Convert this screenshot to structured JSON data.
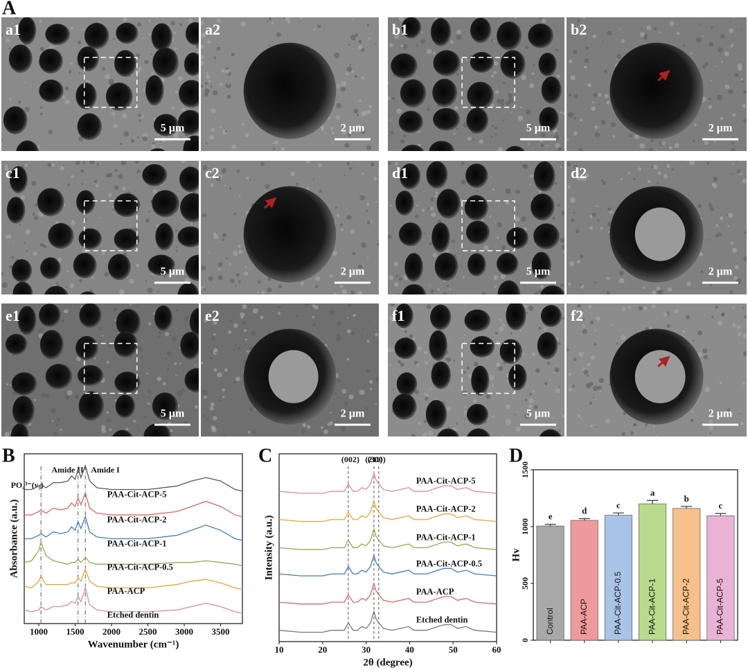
{
  "figure_a": {
    "label": "A",
    "panels": [
      {
        "label": "a1",
        "scale_bar": "5 µm"
      },
      {
        "label": "a2",
        "scale_bar": "2 µm"
      },
      {
        "label": "b1",
        "scale_bar": "5 µm"
      },
      {
        "label": "b2",
        "scale_bar": "2 µm"
      },
      {
        "label": "c1",
        "scale_bar": "5 µm"
      },
      {
        "label": "c2",
        "scale_bar": "2 µm"
      },
      {
        "label": "d1",
        "scale_bar": "5 µm"
      },
      {
        "label": "d2",
        "scale_bar": "2 µm"
      },
      {
        "label": "e1",
        "scale_bar": "5 µm"
      },
      {
        "label": "e2",
        "scale_bar": "2 µm"
      },
      {
        "label": "f1",
        "scale_bar": "5 µm"
      },
      {
        "label": "f2",
        "scale_bar": "2 µm"
      }
    ]
  },
  "chart_data": [
    {
      "type": "line",
      "panel_label": "B",
      "x_label": "Wavenumber (cm⁻¹)",
      "y_label": "Absorbance (a.u.)",
      "x": [
        800,
        900,
        1000,
        1030,
        1100,
        1200,
        1300,
        1400,
        1450,
        1500,
        1540,
        1580,
        1640,
        1700,
        1800,
        2000,
        2500,
        2900,
        3100,
        3300,
        3500,
        3700,
        3800
      ],
      "xlim": [
        800,
        3800
      ],
      "xticks": [
        1000,
        1500,
        2000,
        2500,
        3000,
        3500
      ],
      "ylim": [
        0,
        10
      ],
      "reference_lines": [
        {
          "value": 1030,
          "label": "PO₄³⁻(ν₃)"
        },
        {
          "value": 1540,
          "label": "Amide II"
        },
        {
          "value": 1640,
          "label": "Amide I"
        }
      ],
      "series": [
        {
          "name": "PAA-Cit-ACP-5",
          "color": "#555555",
          "values": [
            7.9,
            7.9,
            8.1,
            8.2,
            8.0,
            8.3,
            8.3,
            8.4,
            8.7,
            8.5,
            9.1,
            8.6,
            9.3,
            8.4,
            8.0,
            7.9,
            7.9,
            8.1,
            8.4,
            8.6,
            8.4,
            7.9,
            7.8
          ]
        },
        {
          "name": "PAA-Cit-ACP-2",
          "color": "#e06464",
          "values": [
            6.4,
            6.4,
            6.6,
            6.7,
            6.5,
            6.8,
            6.7,
            6.8,
            7.1,
            6.9,
            7.4,
            7.0,
            7.7,
            6.8,
            6.5,
            6.4,
            6.4,
            6.6,
            6.9,
            7.2,
            6.9,
            6.4,
            6.3
          ]
        },
        {
          "name": "PAA-Cit-ACP-1",
          "color": "#3d7cc4",
          "values": [
            5.0,
            5.0,
            5.2,
            5.3,
            5.1,
            5.4,
            5.3,
            5.4,
            5.7,
            5.5,
            6.0,
            5.6,
            6.3,
            5.4,
            5.1,
            5.0,
            5.0,
            5.2,
            5.5,
            5.8,
            5.5,
            5.0,
            4.9
          ]
        },
        {
          "name": "PAA-Cit-ACP-0.5",
          "color": "#8fac4a",
          "values": [
            3.6,
            3.7,
            4.3,
            4.8,
            4.0,
            3.7,
            3.6,
            3.5,
            3.6,
            3.6,
            3.8,
            3.6,
            3.9,
            3.6,
            3.5,
            3.5,
            3.5,
            3.6,
            3.6,
            3.7,
            3.6,
            3.5,
            3.4
          ]
        },
        {
          "name": "PAA-ACP",
          "color": "#f0a030",
          "values": [
            2.2,
            2.1,
            2.5,
            2.8,
            2.3,
            2.3,
            2.3,
            2.3,
            2.4,
            2.4,
            2.7,
            2.5,
            3.2,
            2.5,
            2.2,
            2.1,
            2.1,
            2.3,
            2.5,
            2.6,
            2.4,
            2.1,
            2.0
          ]
        },
        {
          "name": "Etched dentin",
          "color": "#d98aa8",
          "values": [
            0.8,
            0.7,
            0.8,
            1.0,
            0.8,
            1.0,
            1.0,
            1.1,
            1.3,
            1.2,
            1.6,
            1.3,
            2.1,
            1.1,
            0.8,
            0.7,
            0.7,
            0.8,
            1.0,
            1.2,
            1.0,
            0.7,
            0.6
          ]
        }
      ]
    },
    {
      "type": "line",
      "panel_label": "C",
      "x_label": "2θ (degree)",
      "y_label": "Intensity (a.u.)",
      "x": [
        10,
        15,
        20,
        22,
        25,
        25.9,
        27,
        28,
        29,
        30,
        31,
        31.8,
        32.3,
        32.9,
        34,
        36,
        39.8,
        41,
        44,
        46.5,
        48,
        49.5,
        51,
        53,
        55,
        60
      ],
      "xlim": [
        10,
        60
      ],
      "xticks": [
        10,
        20,
        30,
        40,
        50,
        60
      ],
      "ylim": [
        0,
        10
      ],
      "reference_lines": [
        {
          "value": 25.9,
          "label": "(002)"
        },
        {
          "value": 31.8,
          "label": "(211)"
        },
        {
          "value": 32.9,
          "label": "(300)"
        }
      ],
      "series": [
        {
          "name": "PAA-Cit-ACP-5",
          "color": "#d98aa8",
          "values": [
            8.0,
            7.9,
            7.9,
            8.0,
            8.0,
            8.4,
            8.0,
            8.0,
            8.2,
            8.1,
            8.4,
            9.0,
            8.6,
            8.4,
            8.1,
            8.0,
            8.2,
            8.0,
            8.0,
            8.2,
            8.3,
            8.3,
            8.1,
            8.2,
            8.0,
            7.9
          ]
        },
        {
          "name": "PAA-Cit-ACP-2",
          "color": "#f0a030",
          "values": [
            6.5,
            6.4,
            6.4,
            6.5,
            6.5,
            6.9,
            6.5,
            6.5,
            6.7,
            6.6,
            6.9,
            7.5,
            7.1,
            6.9,
            6.6,
            6.5,
            6.7,
            6.5,
            6.5,
            6.7,
            6.8,
            6.8,
            6.6,
            6.7,
            6.5,
            6.4
          ]
        },
        {
          "name": "PAA-Cit-ACP-1",
          "color": "#8fac4a",
          "values": [
            5.0,
            4.9,
            4.9,
            5.0,
            5.0,
            5.4,
            5.0,
            5.0,
            5.2,
            5.1,
            5.4,
            6.0,
            5.6,
            5.4,
            5.1,
            5.0,
            5.2,
            5.0,
            5.0,
            5.2,
            5.3,
            5.3,
            5.1,
            5.2,
            5.0,
            4.9
          ]
        },
        {
          "name": "PAA-Cit-ACP-0.5",
          "color": "#3d7cc4",
          "values": [
            3.6,
            3.5,
            3.5,
            3.6,
            3.6,
            4.0,
            3.6,
            3.6,
            3.8,
            3.7,
            4.0,
            4.6,
            4.2,
            4.0,
            3.7,
            3.6,
            3.8,
            3.6,
            3.6,
            3.8,
            3.9,
            3.9,
            3.7,
            3.8,
            3.6,
            3.5
          ]
        },
        {
          "name": "PAA-ACP",
          "color": "#e06464",
          "values": [
            2.1,
            2.0,
            2.0,
            2.1,
            2.1,
            2.5,
            2.1,
            2.1,
            2.3,
            2.2,
            2.5,
            3.1,
            2.7,
            2.5,
            2.2,
            2.1,
            2.3,
            2.1,
            2.1,
            2.3,
            2.4,
            2.4,
            2.2,
            2.3,
            2.1,
            2.0
          ]
        },
        {
          "name": "Etched dentin",
          "color": "#777777",
          "values": [
            0.6,
            0.5,
            0.5,
            0.6,
            0.6,
            1.0,
            0.6,
            0.6,
            0.8,
            0.7,
            1.0,
            1.6,
            1.2,
            1.0,
            0.7,
            0.6,
            0.8,
            0.6,
            0.6,
            0.8,
            0.9,
            0.9,
            0.7,
            0.8,
            0.6,
            0.5
          ]
        }
      ]
    },
    {
      "type": "bar",
      "panel_label": "D",
      "y_label": "Hv",
      "categories": [
        "Control",
        "PAA-ACP",
        "PAA-Cit-ACP-0.5",
        "PAA-Cit-ACP-1",
        "PAA-Cit-ACP-2",
        "PAA-Cit-ACP-5"
      ],
      "values": [
        1005,
        1055,
        1100,
        1200,
        1160,
        1095
      ],
      "errors": [
        15,
        15,
        20,
        30,
        18,
        20
      ],
      "annotations": [
        "e",
        "d",
        "c",
        "a",
        "b",
        "c"
      ],
      "colors": [
        "#a8a8a8",
        "#ef9a9a",
        "#a9c4e6",
        "#b8dc8c",
        "#f7c08a",
        "#e9b3d6"
      ],
      "ylim": [
        0,
        1500
      ],
      "yticks": [
        0,
        500,
        1000,
        1500
      ]
    }
  ]
}
